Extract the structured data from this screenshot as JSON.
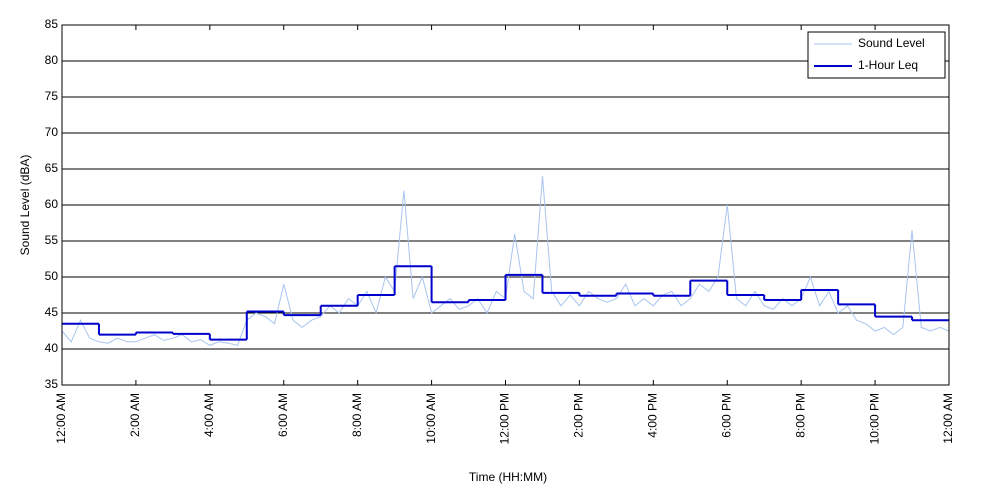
{
  "chart_data": {
    "type": "line",
    "xlabel": "Time (HH:MM)",
    "ylabel": "Sound Level (dBA)",
    "xlim": [
      0,
      24
    ],
    "ylim": [
      35,
      85
    ],
    "yticks": [
      35,
      40,
      45,
      50,
      55,
      60,
      65,
      70,
      75,
      80,
      85
    ],
    "xticks": [
      {
        "value": 0,
        "label": "12:00 AM"
      },
      {
        "value": 2,
        "label": "2:00 AM"
      },
      {
        "value": 4,
        "label": "4:00 AM"
      },
      {
        "value": 6,
        "label": "6:00 AM"
      },
      {
        "value": 8,
        "label": "8:00 AM"
      },
      {
        "value": 10,
        "label": "10:00 AM"
      },
      {
        "value": 12,
        "label": "12:00 PM"
      },
      {
        "value": 14,
        "label": "2:00 PM"
      },
      {
        "value": 16,
        "label": "4:00 PM"
      },
      {
        "value": 18,
        "label": "6:00 PM"
      },
      {
        "value": 20,
        "label": "8:00 PM"
      },
      {
        "value": 22,
        "label": "10:00 PM"
      },
      {
        "value": 24,
        "label": "12:00 AM"
      }
    ],
    "grid": true,
    "legend": "upper right",
    "series": [
      {
        "name": "Sound Level",
        "color": "#a9c4f0",
        "style": "line",
        "x": [
          0,
          0.25,
          0.5,
          0.75,
          1,
          1.25,
          1.5,
          1.75,
          2,
          2.25,
          2.5,
          2.75,
          3,
          3.25,
          3.5,
          3.75,
          4,
          4.25,
          4.5,
          4.75,
          5,
          5.25,
          5.5,
          5.75,
          6,
          6.25,
          6.5,
          6.75,
          7,
          7.25,
          7.5,
          7.75,
          8,
          8.25,
          8.5,
          8.75,
          9,
          9.25,
          9.5,
          9.75,
          10,
          10.25,
          10.5,
          10.75,
          11,
          11.25,
          11.5,
          11.75,
          12,
          12.25,
          12.5,
          12.75,
          13,
          13.25,
          13.5,
          13.75,
          14,
          14.25,
          14.5,
          14.75,
          15,
          15.25,
          15.5,
          15.75,
          16,
          16.25,
          16.5,
          16.75,
          17,
          17.25,
          17.5,
          17.75,
          18,
          18.25,
          18.5,
          18.75,
          19,
          19.25,
          19.5,
          19.75,
          20,
          20.25,
          20.5,
          20.75,
          21,
          21.25,
          21.5,
          21.75,
          22,
          22.25,
          22.5,
          22.75,
          23,
          23.25,
          23.5,
          23.75,
          24
        ],
        "values": [
          42.5,
          41,
          44,
          41.5,
          41,
          40.8,
          41.5,
          41,
          41,
          41.5,
          42,
          41.2,
          41.5,
          42,
          41,
          41.3,
          40.5,
          41,
          40.8,
          40.5,
          44,
          45,
          44.5,
          43.5,
          49,
          44,
          43,
          44,
          44.5,
          46,
          45,
          47,
          46,
          48,
          45,
          50,
          48,
          62,
          47,
          50,
          45,
          46,
          47,
          45.5,
          46,
          47,
          45,
          48,
          47,
          56,
          48,
          47,
          64,
          48,
          46,
          47.5,
          46,
          48,
          47,
          46.5,
          47,
          49,
          46,
          47,
          46,
          47.5,
          48,
          46,
          47,
          49,
          48,
          50,
          60,
          47,
          46,
          48,
          46,
          45.5,
          47,
          46,
          47,
          50,
          46,
          48,
          45,
          46,
          44,
          43.5,
          42.5,
          43,
          42,
          43,
          56.5,
          43,
          42.5,
          43,
          42.5
        ]
      },
      {
        "name": "1-Hour Leq",
        "color": "#0000cc",
        "style": "step",
        "x": [
          0,
          1,
          2,
          3,
          4,
          5,
          6,
          7,
          8,
          9,
          10,
          11,
          12,
          13,
          14,
          15,
          16,
          17,
          18,
          19,
          20,
          21,
          22,
          23
        ],
        "values": [
          43.5,
          42.0,
          42.3,
          42.1,
          41.3,
          45.2,
          44.7,
          46.0,
          47.5,
          51.5,
          46.5,
          46.8,
          50.3,
          47.8,
          47.4,
          47.7,
          47.4,
          49.5,
          47.5,
          46.8,
          48.2,
          46.2,
          44.5,
          44.0
        ]
      }
    ]
  }
}
